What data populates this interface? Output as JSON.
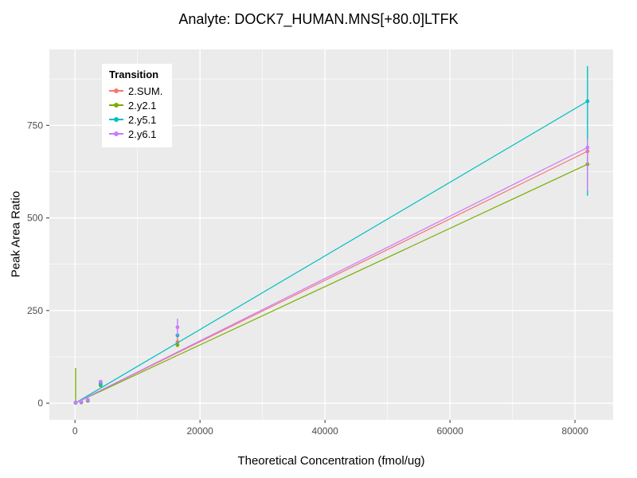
{
  "chart_data": {
    "type": "line",
    "title": "Analyte: DOCK7_HUMAN.MNS[+80.0]LTFK",
    "xlabel": "Theoretical Concentration (fmol/ug)",
    "ylabel": "Peak Area Ratio",
    "xlim": [
      -4100,
      86100
    ],
    "ylim": [
      -45,
      955
    ],
    "x_ticks": [
      0,
      20000,
      40000,
      60000,
      80000
    ],
    "y_ticks": [
      0,
      250,
      500,
      750
    ],
    "x_minor_ticks": [
      10000,
      30000,
      50000,
      70000
    ],
    "y_minor_ticks": [
      125,
      375,
      625,
      875
    ],
    "grid": true,
    "panel_bg": "#EBEBEB",
    "grid_color": "#FFFFFF",
    "tick_label_color": "#4D4D4D",
    "legend": {
      "title": "Transition",
      "position": "top-left-inside"
    },
    "series": [
      {
        "name": "2.SUM.",
        "color": "#F8766D",
        "line": {
          "x": [
            0,
            82000
          ],
          "y": [
            0,
            680
          ]
        },
        "points": [
          {
            "x": 100,
            "y": 1
          },
          {
            "x": 1000,
            "y": 3
          },
          {
            "x": 2050,
            "y": 7
          },
          {
            "x": 4100,
            "y": 55
          },
          {
            "x": 16400,
            "y": 165
          },
          {
            "x": 82000,
            "y": 680
          }
        ],
        "error_bars": [
          {
            "x": 16400,
            "ymin": 151,
            "ymax": 179
          },
          {
            "x": 82000,
            "ymin": 655,
            "ymax": 702
          }
        ]
      },
      {
        "name": "2.y2.1",
        "color": "#7CAE00",
        "line": {
          "x": [
            0,
            82000
          ],
          "y": [
            0,
            645
          ]
        },
        "points": [
          {
            "x": 100,
            "y": 1
          },
          {
            "x": 1000,
            "y": 2
          },
          {
            "x": 2050,
            "y": 6
          },
          {
            "x": 4100,
            "y": 48
          },
          {
            "x": 16400,
            "y": 157
          },
          {
            "x": 82000,
            "y": 645
          }
        ],
        "error_bars": [
          {
            "x": 100,
            "ymin": 0,
            "ymax": 95
          },
          {
            "x": 82000,
            "ymin": 622,
            "ymax": 662
          }
        ]
      },
      {
        "name": "2.y5.1",
        "color": "#00BFC4",
        "line": {
          "x": [
            0,
            82000
          ],
          "y": [
            0,
            815
          ]
        },
        "points": [
          {
            "x": 100,
            "y": 1
          },
          {
            "x": 1000,
            "y": 3
          },
          {
            "x": 2050,
            "y": 8
          },
          {
            "x": 4100,
            "y": 52
          },
          {
            "x": 16400,
            "y": 183
          },
          {
            "x": 82000,
            "y": 815
          }
        ],
        "error_bars": [
          {
            "x": 82000,
            "ymin": 560,
            "ymax": 910
          }
        ]
      },
      {
        "name": "2.y6.1",
        "color": "#C77CFF",
        "line": {
          "x": [
            0,
            82000
          ],
          "y": [
            0,
            690
          ]
        },
        "points": [
          {
            "x": 100,
            "y": 2
          },
          {
            "x": 1000,
            "y": 4
          },
          {
            "x": 2050,
            "y": 9
          },
          {
            "x": 4100,
            "y": 58
          },
          {
            "x": 16400,
            "y": 205
          },
          {
            "x": 82000,
            "y": 690
          }
        ],
        "error_bars": [
          {
            "x": 16400,
            "ymin": 182,
            "ymax": 228
          },
          {
            "x": 82000,
            "ymin": 573,
            "ymax": 712
          }
        ]
      }
    ]
  }
}
